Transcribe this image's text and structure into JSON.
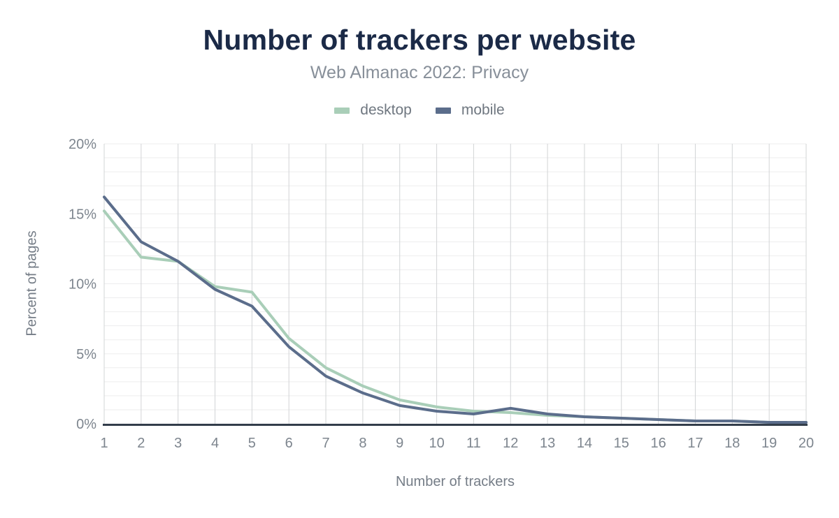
{
  "chart_data": {
    "type": "line",
    "title": "Number of trackers per website",
    "subtitle": "Web Almanac 2022: Privacy",
    "xlabel": "Number of trackers",
    "ylabel": "Percent of pages",
    "x": [
      1,
      2,
      3,
      4,
      5,
      6,
      7,
      8,
      9,
      10,
      11,
      12,
      13,
      14,
      15,
      16,
      17,
      18,
      19,
      20
    ],
    "series": [
      {
        "name": "desktop",
        "color": "#a9ceb8",
        "values": [
          15.2,
          11.9,
          11.6,
          9.8,
          9.4,
          6.1,
          4.0,
          2.7,
          1.7,
          1.2,
          0.9,
          0.8,
          0.6,
          0.5,
          0.4,
          0.3,
          0.2,
          0.2,
          0.1,
          0.1
        ]
      },
      {
        "name": "mobile",
        "color": "#5b6d8b",
        "values": [
          16.2,
          13.0,
          11.6,
          9.6,
          8.4,
          5.5,
          3.4,
          2.2,
          1.3,
          0.9,
          0.7,
          1.1,
          0.7,
          0.5,
          0.4,
          0.3,
          0.2,
          0.2,
          0.1,
          0.1
        ]
      }
    ],
    "ylim": [
      0,
      20
    ],
    "yticks_labeled": [
      0,
      5,
      10,
      15,
      20
    ],
    "ytick_suffix": "%",
    "minor_grid_step": 1,
    "grid": true,
    "legend_position": "top"
  },
  "colors": {
    "title": "#1b2a47",
    "subtitle": "#878f99",
    "tick_label": "#7d858e",
    "axis_title": "#757d87",
    "grid_vertical": "#d2d4d6",
    "grid_horizontal": "#ededee",
    "axis_line": "#333d4a"
  }
}
